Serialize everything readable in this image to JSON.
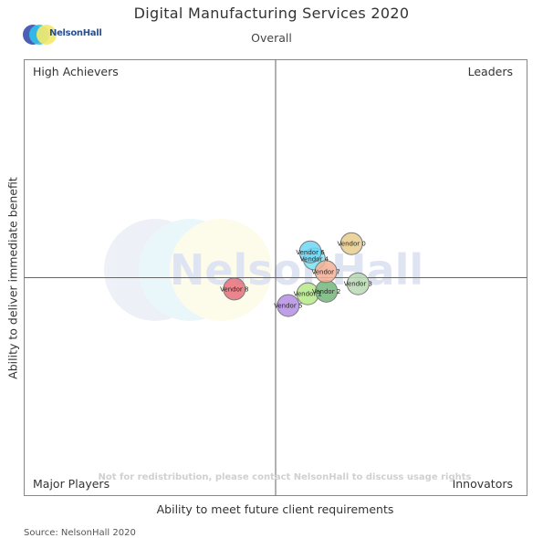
{
  "header": {
    "title": "Digital Manufacturing Services 2020",
    "subtitle": "Overall",
    "logo_text": "NelsonHall"
  },
  "footer": {
    "source": "Source: NelsonHall 2020"
  },
  "chart_data": {
    "type": "scatter",
    "title": "Digital Manufacturing Services 2020",
    "subtitle": "Overall",
    "xlabel": "Ability to meet future client requirements",
    "ylabel": "Ability to deliver immediate benefit",
    "xlim": [
      0,
      100
    ],
    "ylim": [
      0,
      100
    ],
    "quadrant_split": [
      50,
      50
    ],
    "grid": false,
    "quadrants": {
      "top_left": "High Achievers",
      "top_right": "Leaders",
      "bottom_left": "Major Players",
      "bottom_right": "Innovators"
    },
    "watermark": "NelsonHall",
    "note": "Not for redistribution, please contact NelsonHall to discuss usage rights",
    "points": [
      {
        "name": "Vendor 0",
        "x": 65.1,
        "y": 57.8,
        "color": "#e8cc8c"
      },
      {
        "name": "Vendor 1",
        "x": 56.4,
        "y": 46.3,
        "color": "#b6ea8a"
      },
      {
        "name": "Vendor 2",
        "x": 60.1,
        "y": 46.9,
        "color": "#74b67a"
      },
      {
        "name": "Vendor 3",
        "x": 66.4,
        "y": 48.6,
        "color": "#b9d9b4"
      },
      {
        "name": "Vendor 4",
        "x": 57.7,
        "y": 54.3,
        "color": "#7ae6f2"
      },
      {
        "name": "Vendor 5",
        "x": 52.5,
        "y": 43.6,
        "color": "#b48ee4"
      },
      {
        "name": "Vendor 6",
        "x": 56.9,
        "y": 55.9,
        "color": "#6fd6f6"
      },
      {
        "name": "Vendor 7",
        "x": 60.0,
        "y": 51.4,
        "color": "#f4b097"
      },
      {
        "name": "Vendor 8",
        "x": 41.8,
        "y": 47.4,
        "color": "#e8707c"
      }
    ]
  }
}
